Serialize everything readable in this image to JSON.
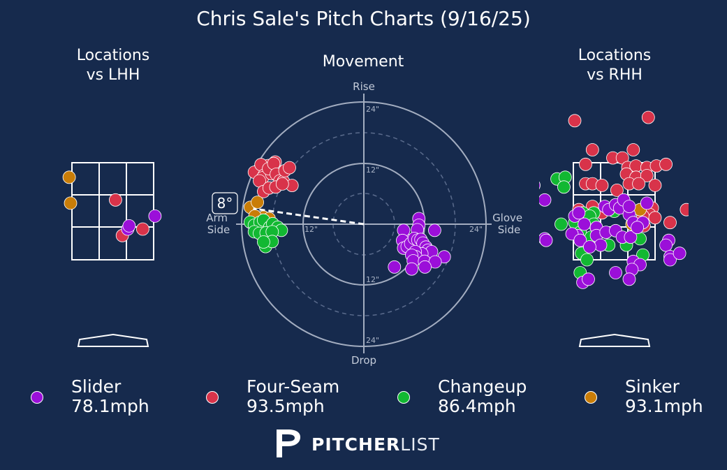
{
  "title": "Chris Sale's Pitch Charts (9/16/25)",
  "panels": {
    "left_title": "Locations\nvs LHH",
    "center_title": "Movement",
    "right_title": "Locations\nvs RHH"
  },
  "movement": {
    "rise_label": "Rise",
    "drop_label": "Drop",
    "arm_side_label": "Arm\nSide",
    "glove_side_label": "Glove\nSide",
    "ring_labels": [
      "24\"",
      "12\"",
      "12\"",
      "24\"",
      "12\"",
      "24\"",
      "12\"",
      "24\""
    ],
    "arm_angle_label": "8°",
    "arm_angle_deg": 8
  },
  "colors": {
    "background": "#162a4d",
    "Slider": "#9b0fd9",
    "Four-Seam": "#d8334a",
    "Changeup": "#12b832",
    "Sinker": "#c97d08"
  },
  "legend": [
    {
      "pitch": "Slider",
      "speed": "78.1mph",
      "color": "#9b0fd9"
    },
    {
      "pitch": "Four-Seam",
      "speed": "93.5mph",
      "color": "#d8334a"
    },
    {
      "pitch": "Changeup",
      "speed": "86.4mph",
      "color": "#12b832"
    },
    {
      "pitch": "Sinker",
      "speed": "93.1mph",
      "color": "#c97d08"
    }
  ],
  "logo": {
    "bold": "PITCHER",
    "light": "LIST"
  },
  "chart_data": [
    {
      "type": "scatter",
      "title": "Locations vs LHH",
      "units": "strike-zone grid (col 0-3 left→right, row 0-3 top→bottom)",
      "series": [
        {
          "name": "Sinker",
          "points": [
            [
              -0.1,
              0.45
            ],
            [
              -0.05,
              1.25
            ]
          ]
        },
        {
          "name": "Four-Seam",
          "points": [
            [
              1.6,
              1.15
            ],
            [
              1.85,
              2.25
            ],
            [
              2.6,
              2.05
            ]
          ]
        },
        {
          "name": "Slider",
          "points": [
            [
              2.05,
              2.05
            ],
            [
              2.1,
              1.95
            ],
            [
              3.05,
              1.65
            ]
          ]
        }
      ]
    },
    {
      "type": "scatter",
      "title": "Movement",
      "units": "inches, x = horizontal (negative = arm side), y = vertical (positive = rise)",
      "xlim": [
        -24,
        24
      ],
      "ylim": [
        -24,
        24
      ],
      "series": [
        {
          "name": "Four-Seam",
          "points": [
            [
              -20.5,
              10.8
            ],
            [
              -19.5,
              10.3
            ],
            [
              -21.5,
              10.2
            ],
            [
              -18.8,
              11.5
            ],
            [
              -20.2,
              11.7
            ],
            [
              -19.6,
              9.6
            ],
            [
              -17.9,
              10.5
            ],
            [
              -17.4,
              12.2
            ],
            [
              -19.9,
              9.1
            ],
            [
              -18.1,
              9.9
            ],
            [
              -18.7,
              10.9
            ],
            [
              -20.5,
              8.5
            ],
            [
              -17.7,
              11.9
            ],
            [
              -17.2,
              9.8
            ],
            [
              -16.5,
              8.5
            ],
            [
              -15.8,
              8.4
            ],
            [
              -14.1,
              7.6
            ],
            [
              -15.5,
              10.5
            ],
            [
              -14.6,
              11.1
            ],
            [
              -19.7,
              6.4
            ],
            [
              -18.6,
              7.1
            ],
            [
              -17.3,
              7.3
            ],
            [
              -16.0,
              7.9
            ]
          ]
        },
        {
          "name": "Sinker",
          "points": [
            [
              -22.3,
              3.3
            ],
            [
              -20.9,
              4.3
            ],
            [
              -19.7,
              1.4
            ],
            [
              -18.6,
              1.1
            ],
            [
              -21.4,
              1.6
            ],
            [
              -20.5,
              0.2
            ],
            [
              -19.9,
              -0.1
            ]
          ]
        },
        {
          "name": "Changeup",
          "points": [
            [
              -22.3,
              0.4
            ],
            [
              -21.5,
              -0.2
            ],
            [
              -20.4,
              0.4
            ],
            [
              -19.7,
              0.8
            ],
            [
              -18.5,
              -0.6
            ],
            [
              -17.9,
              0.1
            ],
            [
              -16.9,
              -0.6
            ],
            [
              -16.2,
              -1.2
            ],
            [
              -21.5,
              -1.5
            ],
            [
              -20.5,
              -1.8
            ],
            [
              -19.2,
              -1.7
            ],
            [
              -18.0,
              -1.5
            ],
            [
              -19.3,
              -4.4
            ],
            [
              -18.0,
              -3.4
            ],
            [
              -19.7,
              -3.5
            ]
          ]
        },
        {
          "name": "Slider",
          "points": [
            [
              10.8,
              1.1
            ],
            [
              10.8,
              -0.2
            ],
            [
              10.5,
              -1.1
            ],
            [
              13.9,
              -1.2
            ],
            [
              8.0,
              -2.9
            ],
            [
              7.8,
              -1.2
            ],
            [
              7.6,
              -3.2
            ],
            [
              7.8,
              -4.7
            ],
            [
              8.5,
              -4.4
            ],
            [
              9.2,
              -3.8
            ],
            [
              9.9,
              -2.8
            ],
            [
              10.6,
              -3.1
            ],
            [
              11.2,
              -3.0
            ],
            [
              11.6,
              -3.7
            ],
            [
              12.2,
              -4.5
            ],
            [
              12.6,
              -5.1
            ],
            [
              13.3,
              -5.4
            ],
            [
              11.4,
              -5.8
            ],
            [
              10.1,
              -5.4
            ],
            [
              10.2,
              -6.4
            ],
            [
              9.4,
              -6.1
            ],
            [
              9.7,
              -7.2
            ],
            [
              11.9,
              -7.3
            ],
            [
              9.4,
              -8.8
            ],
            [
              15.8,
              -6.4
            ],
            [
              14.0,
              -7.4
            ],
            [
              12.0,
              -8.4
            ],
            [
              6.0,
              -8.4
            ]
          ]
        }
      ]
    },
    {
      "type": "scatter",
      "title": "Locations vs RHH",
      "units": "strike-zone grid (col 0-3 left→right, row 0-3 top→bottom)",
      "series": [
        {
          "name": "Four-Seam",
          "points": [
            [
              0.05,
              -1.3
            ],
            [
              2.75,
              -1.4
            ],
            [
              0.7,
              -0.4
            ],
            [
              1.45,
              -0.15
            ],
            [
              2.2,
              -0.4
            ],
            [
              0.45,
              0.05
            ],
            [
              1.8,
              -0.15
            ],
            [
              2.0,
              0.15
            ],
            [
              2.3,
              0.1
            ],
            [
              2.7,
              0.15
            ],
            [
              3.05,
              0.1
            ],
            [
              3.4,
              0.05
            ],
            [
              1.95,
              0.35
            ],
            [
              2.3,
              0.45
            ],
            [
              2.7,
              0.4
            ],
            [
              0.45,
              0.65
            ],
            [
              0.7,
              0.65
            ],
            [
              3.0,
              0.7
            ],
            [
              1.05,
              0.7
            ],
            [
              1.6,
              0.85
            ],
            [
              2.05,
              0.65
            ],
            [
              2.4,
              0.65
            ],
            [
              0.2,
              1.45
            ],
            [
              0.7,
              1.35
            ],
            [
              1.05,
              1.55
            ],
            [
              2.9,
              1.4
            ],
            [
              2.8,
              1.6
            ],
            [
              2.55,
              1.65
            ],
            [
              3.0,
              1.7
            ],
            [
              2.6,
              1.95
            ],
            [
              3.55,
              1.85
            ],
            [
              4.15,
              1.45
            ]
          ]
        },
        {
          "name": "Changeup",
          "points": [
            [
              -0.6,
              0.5
            ],
            [
              -0.3,
              0.45
            ],
            [
              -0.35,
              0.75
            ],
            [
              0.75,
              1.55
            ],
            [
              1.5,
              1.5
            ],
            [
              0.35,
              1.55
            ],
            [
              0.6,
              1.65
            ],
            [
              0.05,
              1.85
            ],
            [
              0.75,
              1.9
            ],
            [
              0.25,
              2.15
            ],
            [
              -0.45,
              1.9
            ],
            [
              0.65,
              2.3
            ],
            [
              1.3,
              2.55
            ],
            [
              1.95,
              2.55
            ],
            [
              2.45,
              2.35
            ],
            [
              2.55,
              2.85
            ],
            [
              0.3,
              2.8
            ],
            [
              0.5,
              3.0
            ],
            [
              0.25,
              3.4
            ]
          ]
        },
        {
          "name": "Sinker",
          "points": [
            [
              2.15,
              1.9
            ],
            [
              2.45,
              1.45
            ]
          ]
        },
        {
          "name": "Slider",
          "points": [
            [
              -1.45,
              0.7
            ],
            [
              -1.05,
              1.15
            ],
            [
              0.05,
              1.65
            ],
            [
              0.4,
              1.9
            ],
            [
              0.15,
              2.25
            ],
            [
              0.2,
              1.55
            ],
            [
              1.15,
              1.35
            ],
            [
              1.3,
              1.45
            ],
            [
              1.55,
              1.3
            ],
            [
              1.7,
              1.4
            ],
            [
              1.85,
              1.15
            ],
            [
              2.05,
              1.6
            ],
            [
              2.2,
              1.85
            ],
            [
              2.7,
              1.25
            ],
            [
              2.55,
              1.85
            ],
            [
              0.85,
              2.0
            ],
            [
              0.85,
              2.25
            ],
            [
              1.2,
              2.15
            ],
            [
              1.55,
              2.1
            ],
            [
              1.8,
              2.3
            ],
            [
              2.1,
              2.3
            ],
            [
              2.35,
              2.0
            ],
            [
              2.05,
              1.35
            ],
            [
              -0.05,
              2.2
            ],
            [
              0.25,
              2.4
            ],
            [
              1.0,
              2.55
            ],
            [
              0.6,
              2.6
            ],
            [
              -1.05,
              2.35
            ],
            [
              -1.0,
              2.4
            ],
            [
              3.5,
              2.4
            ],
            [
              3.4,
              2.55
            ],
            [
              3.55,
              2.9
            ],
            [
              3.55,
              3.0
            ],
            [
              3.9,
              2.8
            ],
            [
              2.2,
              3.05
            ],
            [
              2.45,
              3.15
            ],
            [
              1.55,
              3.4
            ],
            [
              2.15,
              3.3
            ],
            [
              0.35,
              3.7
            ],
            [
              0.55,
              3.6
            ],
            [
              2.05,
              3.6
            ]
          ]
        }
      ]
    }
  ]
}
